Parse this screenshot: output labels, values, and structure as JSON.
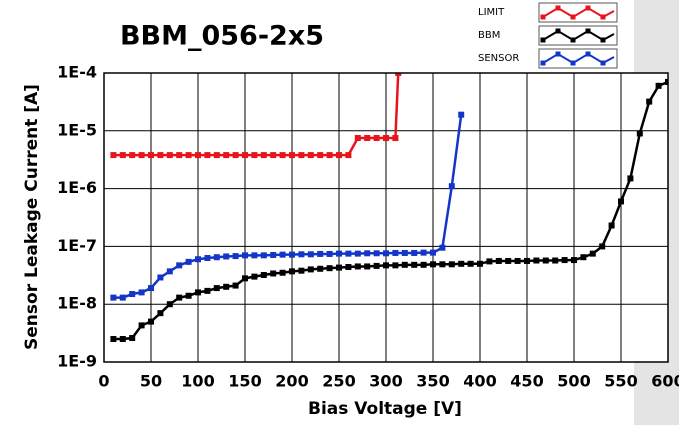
{
  "chart_data": {
    "type": "line",
    "title": "BBM_056-2x5",
    "x_label": "Bias Voltage [V]",
    "y_label": "Sensor Leakage Current [A]",
    "xlim": [
      0,
      600
    ],
    "xticks": [
      0,
      50,
      100,
      150,
      200,
      250,
      300,
      350,
      400,
      450,
      500,
      550,
      600
    ],
    "ylim": [
      1e-09,
      0.0001
    ],
    "y_scale": "log",
    "yticks": [
      {
        "value": 1e-09,
        "label": "1E-9"
      },
      {
        "value": 1e-08,
        "label": "1E-8"
      },
      {
        "value": 1e-07,
        "label": "1E-7"
      },
      {
        "value": 1e-06,
        "label": "1E-6"
      },
      {
        "value": 1e-05,
        "label": "1E-5"
      },
      {
        "value": 0.0001,
        "label": "1E-4"
      }
    ],
    "grid": true,
    "legend": "top-right",
    "series": [
      {
        "name": "LIMIT",
        "color": "#e8141c",
        "x": [
          10,
          20,
          30,
          40,
          50,
          60,
          70,
          80,
          90,
          100,
          110,
          120,
          130,
          140,
          150,
          160,
          170,
          180,
          190,
          200,
          210,
          220,
          230,
          240,
          250,
          260,
          270,
          280,
          290,
          300,
          310,
          313
        ],
        "values": [
          3.8e-06,
          3.8e-06,
          3.8e-06,
          3.8e-06,
          3.8e-06,
          3.8e-06,
          3.8e-06,
          3.8e-06,
          3.8e-06,
          3.8e-06,
          3.8e-06,
          3.8e-06,
          3.8e-06,
          3.8e-06,
          3.8e-06,
          3.8e-06,
          3.8e-06,
          3.8e-06,
          3.8e-06,
          3.8e-06,
          3.8e-06,
          3.8e-06,
          3.8e-06,
          3.8e-06,
          3.8e-06,
          3.8e-06,
          7.5e-06,
          7.5e-06,
          7.5e-06,
          7.5e-06,
          7.5e-06,
          0.0001
        ]
      },
      {
        "name": "BBM",
        "color": "#000000",
        "x": [
          10,
          20,
          30,
          40,
          50,
          60,
          70,
          80,
          90,
          100,
          110,
          120,
          130,
          140,
          150,
          160,
          170,
          180,
          190,
          200,
          210,
          220,
          230,
          240,
          250,
          260,
          270,
          280,
          290,
          300,
          310,
          320,
          330,
          340,
          350,
          360,
          370,
          380,
          390,
          400,
          410,
          420,
          430,
          440,
          450,
          460,
          470,
          480,
          490,
          500,
          510,
          520,
          530,
          540,
          550,
          560,
          570,
          580,
          590,
          600
        ],
        "values": [
          2.5e-09,
          2.5e-09,
          2.6e-09,
          4.3e-09,
          5e-09,
          7e-09,
          1e-08,
          1.3e-08,
          1.4e-08,
          1.6e-08,
          1.7e-08,
          1.9e-08,
          2e-08,
          2.1e-08,
          2.8e-08,
          3e-08,
          3.2e-08,
          3.4e-08,
          3.5e-08,
          3.7e-08,
          3.8e-08,
          4e-08,
          4.1e-08,
          4.2e-08,
          4.3e-08,
          4.4e-08,
          4.5e-08,
          4.5e-08,
          4.6e-08,
          4.7e-08,
          4.7e-08,
          4.8e-08,
          4.8e-08,
          4.8e-08,
          4.9e-08,
          4.9e-08,
          4.9e-08,
          5e-08,
          5e-08,
          5e-08,
          5.5e-08,
          5.6e-08,
          5.6e-08,
          5.6e-08,
          5.6e-08,
          5.7e-08,
          5.7e-08,
          5.7e-08,
          5.8e-08,
          5.8e-08,
          6.5e-08,
          7.5e-08,
          1e-07,
          2.3e-07,
          6e-07,
          1.5e-06,
          9e-06,
          3.2e-05,
          6e-05,
          7e-05
        ]
      },
      {
        "name": "SENSOR",
        "color": "#1436c8",
        "x": [
          10,
          20,
          30,
          40,
          50,
          60,
          70,
          80,
          90,
          100,
          110,
          120,
          130,
          140,
          150,
          160,
          170,
          180,
          190,
          200,
          210,
          220,
          230,
          240,
          250,
          260,
          270,
          280,
          290,
          300,
          310,
          320,
          330,
          340,
          350,
          360,
          370,
          380
        ],
        "values": [
          1.3e-08,
          1.3e-08,
          1.5e-08,
          1.6e-08,
          1.9e-08,
          2.9e-08,
          3.7e-08,
          4.7e-08,
          5.4e-08,
          6e-08,
          6.3e-08,
          6.5e-08,
          6.7e-08,
          6.8e-08,
          7e-08,
          7e-08,
          7e-08,
          7.1e-08,
          7.2e-08,
          7.2e-08,
          7.3e-08,
          7.3e-08,
          7.4e-08,
          7.4e-08,
          7.5e-08,
          7.5e-08,
          7.5e-08,
          7.6e-08,
          7.6e-08,
          7.6e-08,
          7.7e-08,
          7.7e-08,
          7.7e-08,
          7.8e-08,
          7.8e-08,
          9.5e-08,
          1.1e-06,
          1.9e-05
        ]
      }
    ]
  }
}
